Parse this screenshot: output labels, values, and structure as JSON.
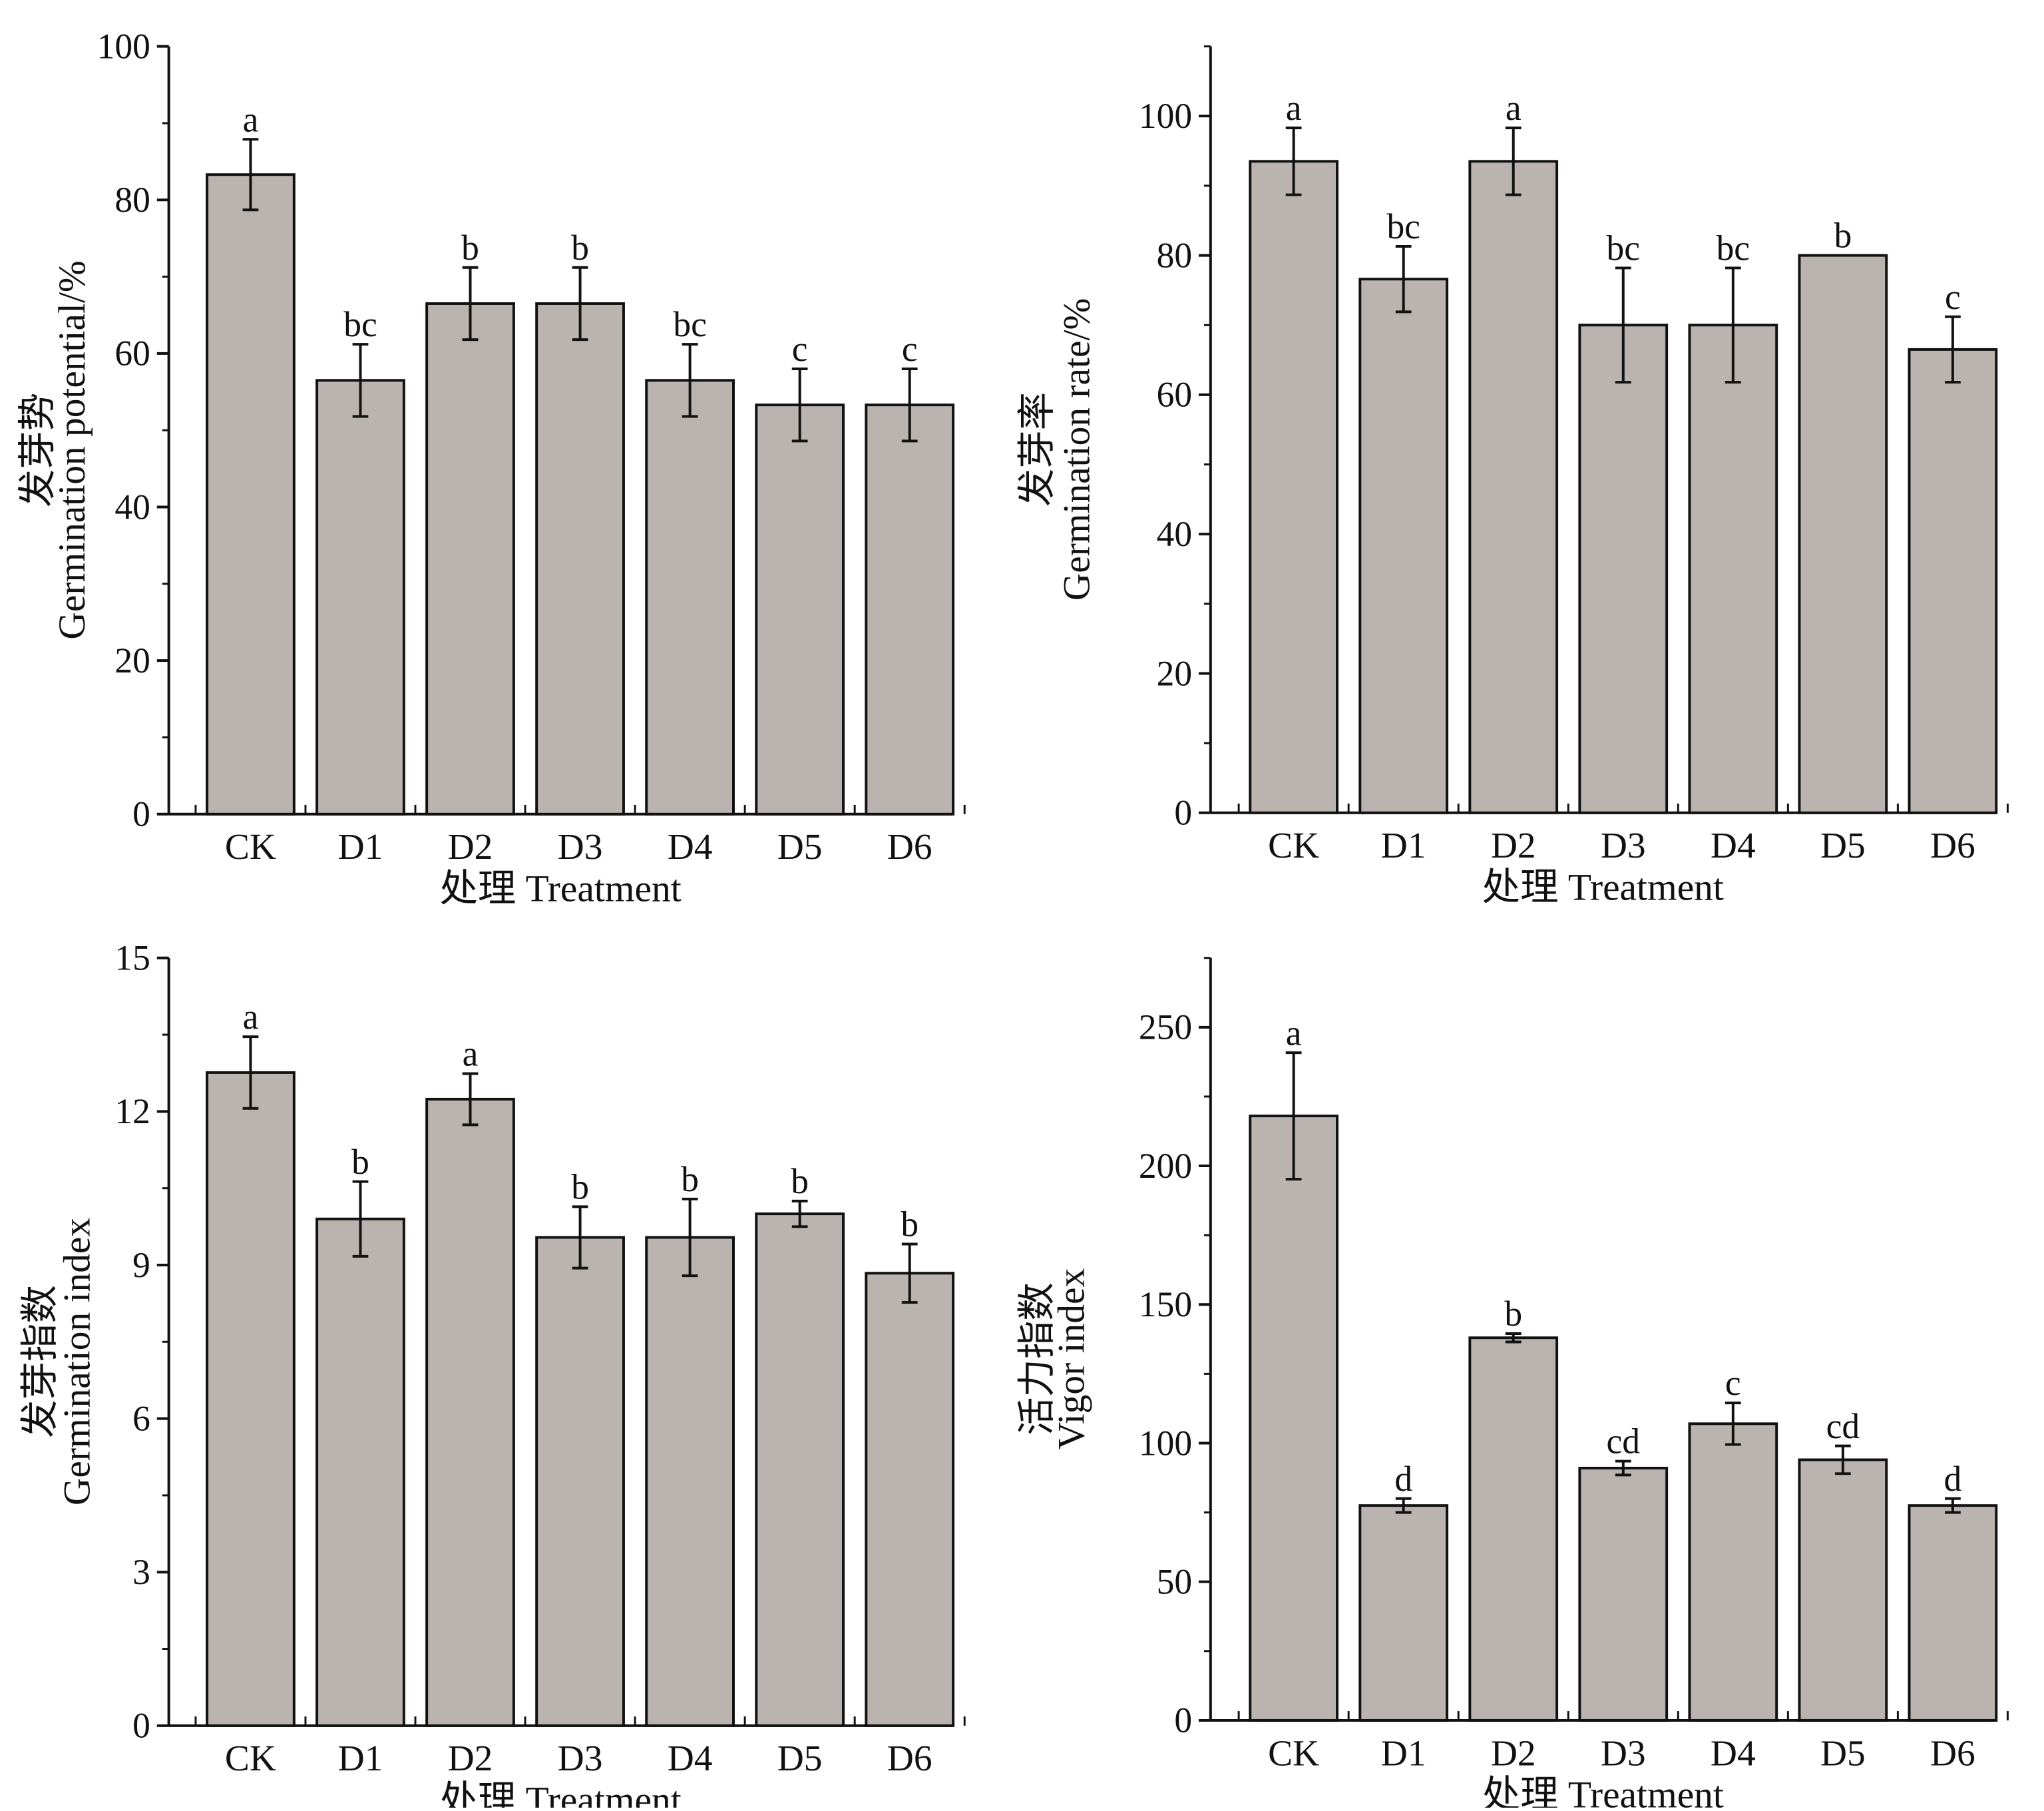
{
  "colors": {
    "bar": "#bbb3af",
    "stroke": "#111111"
  },
  "chart_data": [
    {
      "type": "bar",
      "ylabel_cn": "发芽势",
      "ylabel": "Germination potential/%",
      "xlabel": "处理  Treatment",
      "categories": [
        "CK",
        "D1",
        "D2",
        "D3",
        "D4",
        "D5",
        "D6"
      ],
      "values": [
        83.3,
        56.5,
        66.5,
        66.5,
        56.5,
        53.3,
        53.3
      ],
      "errors": [
        4.6,
        4.7,
        4.7,
        4.7,
        4.7,
        4.7,
        4.7
      ],
      "letters": [
        "a",
        "bc",
        "b",
        "b",
        "bc",
        "c",
        "c"
      ],
      "ylim": [
        0,
        100
      ],
      "yticks": [
        0,
        20,
        40,
        60,
        80,
        100
      ]
    },
    {
      "type": "bar",
      "ylabel_cn": "发芽率",
      "ylabel": "Germination rate/%",
      "xlabel": "处理  Treatment",
      "categories": [
        "CK",
        "D1",
        "D2",
        "D3",
        "D4",
        "D5",
        "D6"
      ],
      "values": [
        93.5,
        76.6,
        93.5,
        70.0,
        70.0,
        80.0,
        66.5
      ],
      "errors": [
        4.8,
        4.7,
        4.8,
        8.2,
        8.2,
        0,
        4.7
      ],
      "letters": [
        "a",
        "bc",
        "a",
        "bc",
        "bc",
        "b",
        "c"
      ],
      "ylim": [
        0,
        110
      ],
      "yticks": [
        0,
        20,
        40,
        60,
        80,
        100
      ]
    },
    {
      "type": "bar",
      "ylabel_cn": "发芽指数",
      "ylabel": "Germination index",
      "xlabel": "处理  Treatment",
      "categories": [
        "CK",
        "D1",
        "D2",
        "D3",
        "D4",
        "D5",
        "D6"
      ],
      "values": [
        12.76,
        9.9,
        12.24,
        9.54,
        9.54,
        10.0,
        8.84
      ],
      "errors": [
        0.7,
        0.73,
        0.5,
        0.6,
        0.75,
        0.25,
        0.57
      ],
      "letters": [
        "a",
        "b",
        "a",
        "b",
        "b",
        "b",
        "b"
      ],
      "ylim": [
        0,
        15
      ],
      "yticks": [
        0,
        3,
        6,
        9,
        12,
        15
      ]
    },
    {
      "type": "bar",
      "ylabel_cn": "活力指数",
      "ylabel": "Vigor index",
      "xlabel": "处理  Treatment",
      "categories": [
        "CK",
        "D1",
        "D2",
        "D3",
        "D4",
        "D5",
        "D6"
      ],
      "values": [
        218,
        77.5,
        138,
        91,
        107,
        94,
        77.5
      ],
      "errors": [
        22.8,
        2.5,
        1.5,
        2.5,
        7.5,
        5,
        2.5
      ],
      "letters": [
        "a",
        "d",
        "b",
        "cd",
        "c",
        "cd",
        "d"
      ],
      "ylim": [
        0,
        275
      ],
      "yticks": [
        0,
        50,
        100,
        150,
        200,
        250
      ]
    }
  ]
}
